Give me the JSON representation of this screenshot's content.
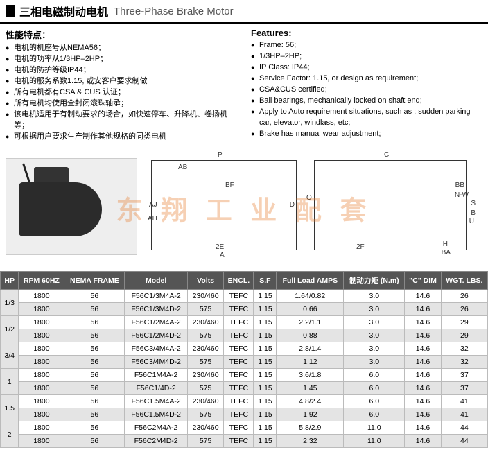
{
  "header": {
    "title_cn": "三相电磁制动电机",
    "title_en": "Three-Phase Brake Motor"
  },
  "left_features": {
    "heading": "性能特点：",
    "items": [
      "电机的机座号从NEMA56；",
      "电机的功率从1/3HP–2HP；",
      "电机的防护等级IP44；",
      "电机的服务系数1.15, 或安客户要求制做",
      "所有电机都有CSA & CUS 认证；",
      "所有电机均使用全封闭滚珠轴承；",
      "该电机适用于有制动要求的场合，如快速停车、升降机、卷扬机等；",
      "可根据用户要求生产制作其他规格的同类电机"
    ]
  },
  "right_features": {
    "heading": "Features:",
    "items": [
      "Frame: 56;",
      "1/3HP–2HP;",
      "IP Class: IP44;",
      "Service Factor: 1.15, or design as requirement;",
      "CSA&CUS certified;",
      "Ball bearings, mechanically locked on shaft end;",
      "Apply to Auto requirement situations, such as : sudden parking car, elevator, windlass, etc;",
      "Brake has manual wear adjustment;"
    ]
  },
  "diagram_labels": {
    "P": "P",
    "AB": "AB",
    "BF": "BF",
    "AJ": "AJ",
    "AH": "AH",
    "D": "D",
    "twoE": "2E",
    "A": "A",
    "C": "C",
    "O": "O",
    "BB": "BB",
    "NW": "N-W",
    "S": "S",
    "B": "B",
    "U": "U",
    "twoF": "2F",
    "H": "H",
    "BA": "BA"
  },
  "watermark": "东 翔 工 业 配 套",
  "table": {
    "columns": [
      "HP",
      "RPM 60HZ",
      "NEMA FRAME",
      "Model",
      "Volts",
      "ENCL.",
      "S.F",
      "Full Load AMPS",
      "制动力矩 (N.m)",
      "\"C\" DIM",
      "WGT. LBS."
    ],
    "groups": [
      {
        "hp": "1/3",
        "rows": [
          {
            "shade": false,
            "cells": [
              "1800",
              "56",
              "F56C1/3M4A-2",
              "230/460",
              "TEFC",
              "1.15",
              "1.64/0.82",
              "3.0",
              "14.6",
              "26"
            ]
          },
          {
            "shade": true,
            "cells": [
              "1800",
              "56",
              "F56C1/3M4D-2",
              "575",
              "TEFC",
              "1.15",
              "0.66",
              "3.0",
              "14.6",
              "26"
            ]
          }
        ]
      },
      {
        "hp": "1/2",
        "rows": [
          {
            "shade": false,
            "cells": [
              "1800",
              "56",
              "F56C1/2M4A-2",
              "230/460",
              "TEFC",
              "1.15",
              "2.2/1.1",
              "3.0",
              "14.6",
              "29"
            ]
          },
          {
            "shade": true,
            "cells": [
              "1800",
              "56",
              "F56C1/2M4D-2",
              "575",
              "TEFC",
              "1.15",
              "0.88",
              "3.0",
              "14.6",
              "29"
            ]
          }
        ]
      },
      {
        "hp": "3/4",
        "rows": [
          {
            "shade": false,
            "cells": [
              "1800",
              "56",
              "F56C3/4M4A-2",
              "230/460",
              "TEFC",
              "1.15",
              "2.8/1.4",
              "3.0",
              "14.6",
              "32"
            ]
          },
          {
            "shade": true,
            "cells": [
              "1800",
              "56",
              "F56C3/4M4D-2",
              "575",
              "TEFC",
              "1.15",
              "1.12",
              "3.0",
              "14.6",
              "32"
            ]
          }
        ]
      },
      {
        "hp": "1",
        "rows": [
          {
            "shade": false,
            "cells": [
              "1800",
              "56",
              "F56C1M4A-2",
              "230/460",
              "TEFC",
              "1.15",
              "3.6/1.8",
              "6.0",
              "14.6",
              "37"
            ]
          },
          {
            "shade": true,
            "cells": [
              "1800",
              "56",
              "F56C1/4D-2",
              "575",
              "TEFC",
              "1.15",
              "1.45",
              "6.0",
              "14.6",
              "37"
            ]
          }
        ]
      },
      {
        "hp": "1.5",
        "rows": [
          {
            "shade": false,
            "cells": [
              "1800",
              "56",
              "F56C1.5M4A-2",
              "230/460",
              "TEFC",
              "1.15",
              "4.8/2.4",
              "6.0",
              "14.6",
              "41"
            ]
          },
          {
            "shade": true,
            "cells": [
              "1800",
              "56",
              "F56C1.5M4D-2",
              "575",
              "TEFC",
              "1.15",
              "1.92",
              "6.0",
              "14.6",
              "41"
            ]
          }
        ]
      },
      {
        "hp": "2",
        "rows": [
          {
            "shade": false,
            "cells": [
              "1800",
              "56",
              "F56C2M4A-2",
              "230/460",
              "TEFC",
              "1.15",
              "5.8/2.9",
              "11.0",
              "14.6",
              "44"
            ]
          },
          {
            "shade": true,
            "cells": [
              "1800",
              "56",
              "F56C2M4D-2",
              "575",
              "TEFC",
              "1.15",
              "2.32",
              "11.0",
              "14.6",
              "44"
            ]
          }
        ]
      }
    ]
  }
}
